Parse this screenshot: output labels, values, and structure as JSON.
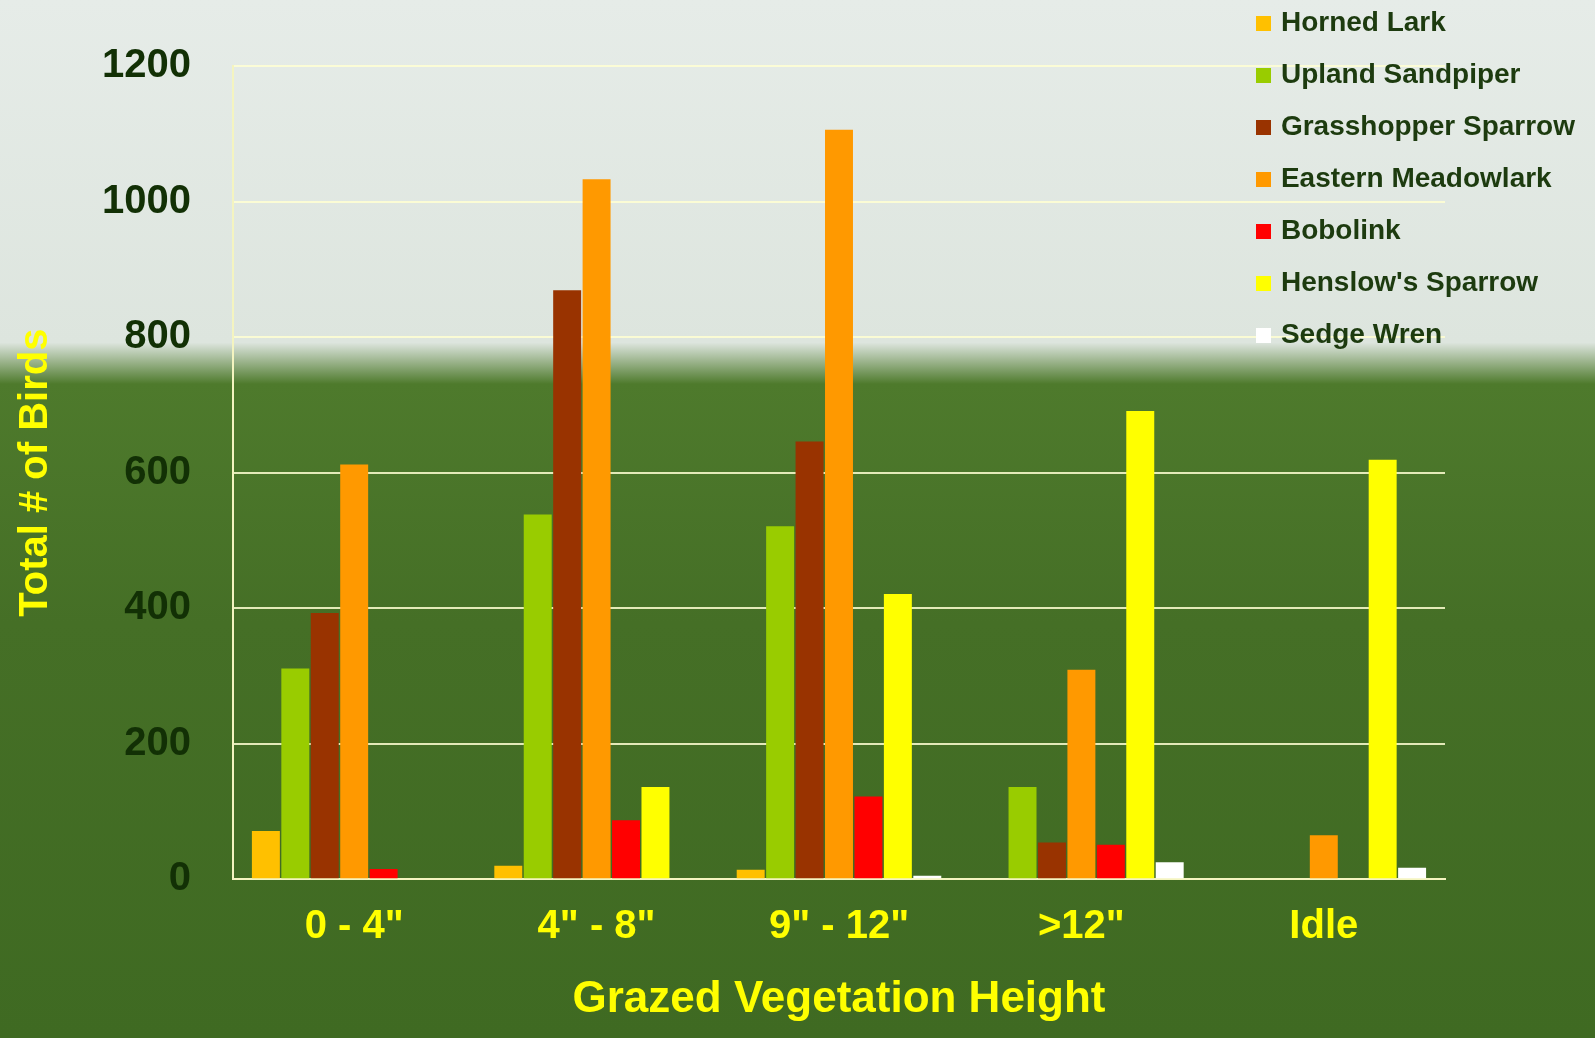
{
  "chart_data": {
    "type": "bar",
    "x_label": "Grazed Vegetation Height",
    "y_label": "Total # of Birds",
    "categories": [
      "0 - 4\"",
      "4\" - 8\"",
      "9\" - 12\"",
      ">12\"",
      "Idle"
    ],
    "series": [
      {
        "name": "Horned Lark",
        "color": "#ffc000",
        "values": [
          71,
          20,
          14,
          0,
          0
        ]
      },
      {
        "name": "Upland Sandpiper",
        "color": "#99cc00",
        "values": [
          311,
          538,
          521,
          136,
          0
        ]
      },
      {
        "name": "Grasshopper Sparrow",
        "color": "#993300",
        "values": [
          393,
          869,
          646,
          54,
          0
        ]
      },
      {
        "name": "Eastern Meadowlark",
        "color": "#ff9900",
        "values": [
          612,
          1033,
          1106,
          309,
          65
        ]
      },
      {
        "name": "Bobolink",
        "color": "#ff0000",
        "values": [
          15,
          87,
          122,
          51,
          0
        ]
      },
      {
        "name": "Henslow's Sparrow",
        "color": "#ffff00",
        "values": [
          0,
          136,
          421,
          691,
          619
        ]
      },
      {
        "name": "Sedge Wren",
        "color": "#ffffff",
        "values": [
          0,
          0,
          5,
          25,
          17
        ]
      }
    ],
    "ylim": [
      0,
      1200
    ],
    "yticks": [
      0,
      200,
      400,
      600,
      800,
      1000,
      1200
    ],
    "grid": true,
    "legend": "top-right"
  }
}
